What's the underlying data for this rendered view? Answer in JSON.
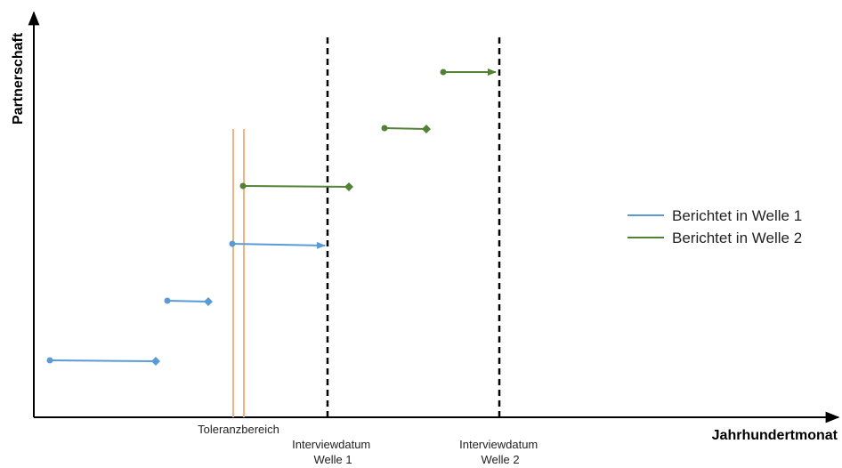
{
  "axes": {
    "y_title": "Partnerschaft",
    "x_title": "Jahrhundertmonat"
  },
  "annotations": {
    "tolerance": "Toleranzbereich",
    "interview1_line1": "Interviewdatum",
    "interview1_line2": "Welle 1",
    "interview2_line1": "Interviewdatum",
    "interview2_line2": "Welle 2"
  },
  "legend": {
    "items": [
      {
        "label": "Berichtet in Welle 1",
        "color": "#5b9bd5"
      },
      {
        "label": "Berichtet in Welle 2",
        "color": "#548235"
      }
    ]
  },
  "colors": {
    "wave1": "#5b9bd5",
    "wave2": "#548235",
    "tolerance": "#f4b183",
    "interview": "#000000",
    "axis": "#000000"
  }
}
